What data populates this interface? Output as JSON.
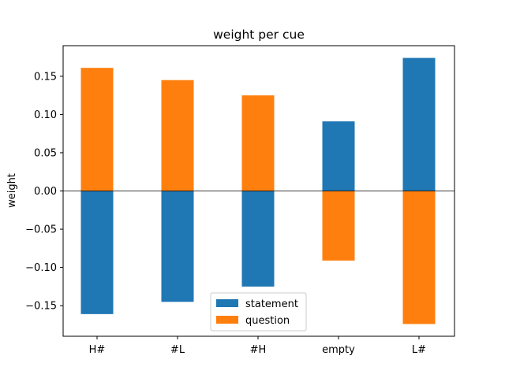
{
  "chart_data": {
    "type": "bar",
    "title": "weight per cue",
    "xlabel": "",
    "ylabel": "weight",
    "categories": [
      "H#",
      "#L",
      "#H",
      "empty",
      "L#"
    ],
    "series": [
      {
        "name": "statement",
        "color": "#1f77b4",
        "values": [
          -0.161,
          -0.145,
          -0.125,
          0.091,
          0.174
        ]
      },
      {
        "name": "question",
        "color": "#ff7f0e",
        "values": [
          0.161,
          0.145,
          0.125,
          -0.091,
          -0.174
        ]
      }
    ],
    "ylim": [
      -0.19,
      0.19
    ],
    "yticks": [
      -0.15,
      -0.1,
      -0.05,
      0.0,
      0.05,
      0.1,
      0.15
    ],
    "ytick_labels": [
      "−0.15",
      "−0.10",
      "−0.05",
      "0.00",
      "0.05",
      "0.10",
      "0.15"
    ],
    "zero_line": true,
    "grid": false,
    "legend_position": "lower-center"
  }
}
